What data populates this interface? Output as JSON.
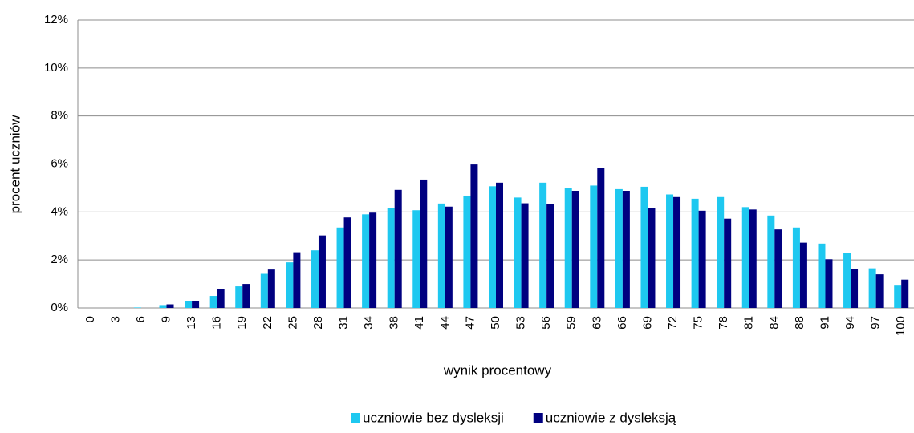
{
  "chart_data": {
    "type": "bar",
    "y_label": "procent uczniów",
    "x_label": "wynik procentowy",
    "categories": [
      "0",
      "3",
      "6",
      "9",
      "13",
      "16",
      "19",
      "22",
      "25",
      "28",
      "31",
      "34",
      "38",
      "41",
      "44",
      "47",
      "50",
      "53",
      "56",
      "59",
      "63",
      "66",
      "69",
      "72",
      "75",
      "78",
      "81",
      "84",
      "88",
      "91",
      "94",
      "97",
      "100"
    ],
    "series": [
      {
        "name": "uczniowie bez dysleksji",
        "color": "#1ec8f0",
        "values": [
          0,
          0,
          0.02,
          0.12,
          0.27,
          0.5,
          0.9,
          1.42,
          1.9,
          2.4,
          3.35,
          3.9,
          4.15,
          4.07,
          4.35,
          4.68,
          5.07,
          4.6,
          5.22,
          4.98,
          5.1,
          4.95,
          5.05,
          4.73,
          4.55,
          4.62,
          4.2,
          3.85,
          3.35,
          2.68,
          2.3,
          1.65,
          0.93
        ]
      },
      {
        "name": "uczniowie z dysleksją",
        "color": "#000080",
        "values": [
          0,
          0,
          0,
          0.15,
          0.27,
          0.78,
          1.0,
          1.6,
          2.32,
          3.02,
          3.77,
          3.97,
          4.92,
          5.35,
          4.22,
          5.98,
          5.22,
          4.36,
          4.33,
          4.88,
          5.83,
          4.88,
          4.15,
          4.62,
          4.05,
          3.72,
          4.1,
          3.27,
          2.72,
          2.03,
          1.62,
          1.4,
          1.18
        ]
      }
    ],
    "ylim": [
      0,
      12
    ],
    "yticks": [
      {
        "value": 0,
        "label": "0%"
      },
      {
        "value": 2,
        "label": "2%"
      },
      {
        "value": 4,
        "label": "4%"
      },
      {
        "value": 6,
        "label": "6%"
      },
      {
        "value": 8,
        "label": "8%"
      },
      {
        "value": 10,
        "label": "10%"
      },
      {
        "value": 12,
        "label": "12%"
      }
    ],
    "grid": true,
    "legend": "bottom"
  }
}
